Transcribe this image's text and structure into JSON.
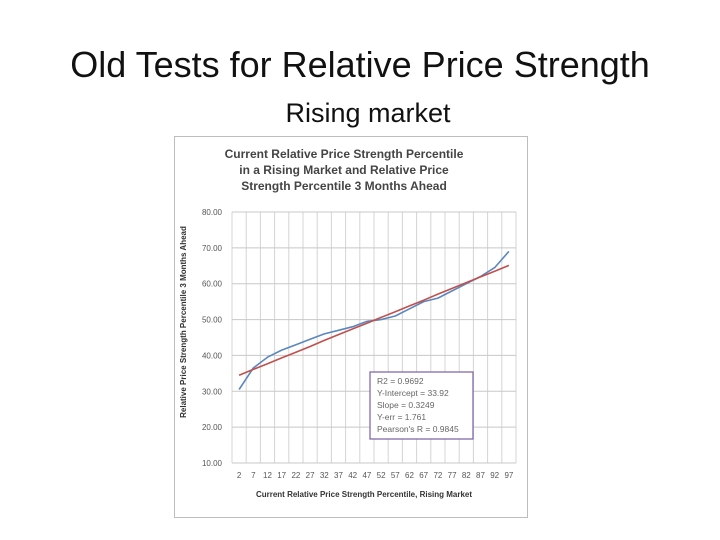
{
  "slide": {
    "title": "Old Tests for Relative Price Strength",
    "subtitle": "Rising market"
  },
  "chart_data": {
    "type": "line",
    "title_lines": [
      "Current Relative Price Strength Percentile",
      "in a Rising Market and Relative Price",
      "Strength Percentile 3 Months Ahead"
    ],
    "xlabel": "Current Relative Price Strength Percentile, Rising Market",
    "ylabel": "Relative Price Strength Percentile 3 Months Ahead",
    "categories": [
      "2",
      "7",
      "12",
      "17",
      "22",
      "27",
      "32",
      "37",
      "42",
      "47",
      "52",
      "57",
      "62",
      "67",
      "72",
      "77",
      "82",
      "87",
      "92",
      "97"
    ],
    "ylim": [
      10,
      80
    ],
    "yticks": [
      "10.00",
      "20.00",
      "30.00",
      "40.00",
      "50.00",
      "60.00",
      "70.00",
      "80.00"
    ],
    "grid": true,
    "series": [
      {
        "values": [
          30.5,
          36.5,
          39.5,
          41.5,
          43.0,
          44.5,
          46.0,
          47.0,
          48.0,
          49.5,
          50.0,
          51.0,
          53.0,
          55.0,
          56.0,
          58.0,
          60.0,
          62.0,
          64.5,
          69.0
        ],
        "color": "#5b87bf"
      },
      {
        "values": [
          34.5,
          36.1,
          37.7,
          39.3,
          40.9,
          42.5,
          44.2,
          45.8,
          47.4,
          49.0,
          50.6,
          52.2,
          53.8,
          55.4,
          57.1,
          58.7,
          60.3,
          61.9,
          63.5,
          65.1
        ],
        "color": "#c0504d"
      }
    ],
    "annotation": [
      "R2 = 0.9692",
      "Y-Intercept = 33.92",
      "Slope = 0.3249",
      "Y-err = 1.761",
      "Pearson's R = 0.9845"
    ],
    "annotation_border_color": "#7b5ea7"
  }
}
